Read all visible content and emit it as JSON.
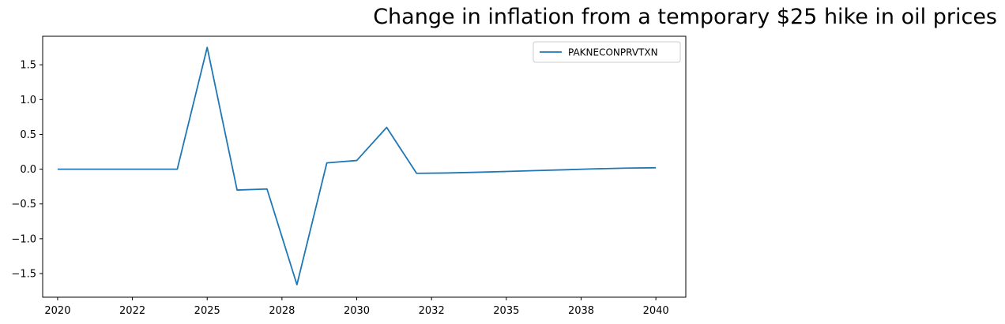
{
  "chart_data": {
    "type": "line",
    "title": "Change in inflation from a temporary $25 hike in oil prices",
    "xlabel": "",
    "ylabel": "",
    "x": [
      2020,
      2021,
      2022,
      2023,
      2024,
      2025,
      2026,
      2027,
      2028,
      2029,
      2030,
      2031,
      2032,
      2033,
      2034,
      2035,
      2036,
      2037,
      2038,
      2039,
      2040
    ],
    "x_tick_labels": [
      "2020",
      "2022",
      "2025",
      "2028",
      "2030",
      "2032",
      "2035",
      "2038",
      "2040"
    ],
    "y_ticks": [
      -1.5,
      -1.0,
      -0.5,
      0.0,
      0.5,
      1.0,
      1.5
    ],
    "y_tick_labels": [
      "−1.5",
      "−1.0",
      "−0.5",
      "0.0",
      "0.5",
      "1.0",
      "1.5"
    ],
    "xlim": [
      2019.5,
      2041.0
    ],
    "ylim": [
      -1.84,
      1.91
    ],
    "series": [
      {
        "name": "PAKNECONPRVTXN",
        "color": "#1f77b4",
        "values": [
          0.0,
          0.0,
          0.0,
          0.0,
          0.0,
          1.75,
          -0.3,
          -0.285,
          -1.66,
          0.09,
          0.125,
          0.6,
          -0.06,
          -0.055,
          -0.045,
          -0.033,
          -0.02,
          -0.008,
          0.005,
          0.015,
          0.02
        ]
      }
    ],
    "legend_position": "top-right",
    "grid": false
  }
}
